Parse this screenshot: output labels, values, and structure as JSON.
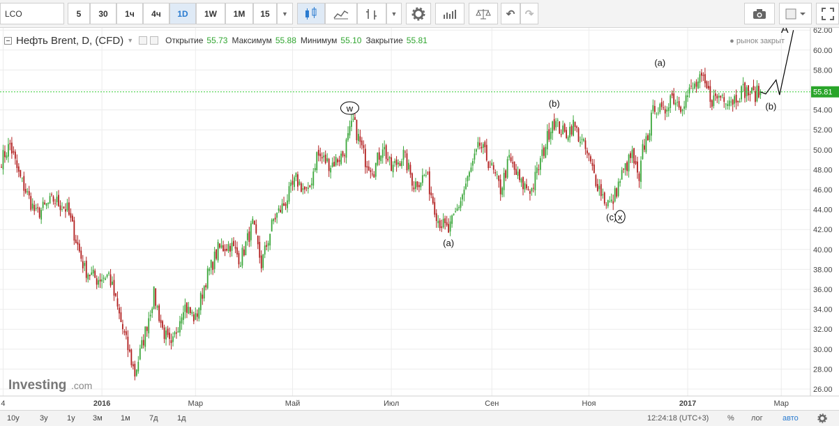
{
  "toolbar": {
    "symbol": "LCO",
    "intervals": [
      "5",
      "30",
      "1ч",
      "4ч",
      "1D",
      "1W",
      "1M",
      "15"
    ],
    "active_interval": "1D"
  },
  "legend": {
    "title": "Нефть Brent, D, (CFD)",
    "open_label": "Открытие",
    "open": "55.73",
    "high_label": "Максимум",
    "high": "55.88",
    "low_label": "Минимум",
    "low": "55.10",
    "close_label": "Закрытие",
    "close": "55.81",
    "market_status": "рынок закрыт"
  },
  "watermark": {
    "brand": "Investing",
    "suffix": ".com"
  },
  "bottom": {
    "ranges": [
      "10y",
      "3y",
      "1y",
      "3м",
      "1м",
      "7д",
      "1д"
    ],
    "time": "12:24:18 (UTC+3)",
    "percent": "%",
    "log": "лог",
    "auto": "авто"
  },
  "colors": {
    "up": "#3aa63a",
    "down": "#b11e1e",
    "price_line": "#33cc33",
    "grid": "#ececec"
  },
  "chart_data": {
    "type": "candlestick",
    "y_axis": {
      "min": 26,
      "max": 62,
      "step": 2,
      "side": "right"
    },
    "y_ticks": [
      "26.00",
      "28.00",
      "30.00",
      "32.00",
      "34.00",
      "36.00",
      "38.00",
      "40.00",
      "42.00",
      "44.00",
      "46.00",
      "48.00",
      "50.00",
      "52.00",
      "54.00",
      "56.00",
      "58.00",
      "60.00",
      "62.00"
    ],
    "x_ticks": [
      "4",
      "2016",
      "Мар",
      "Май",
      "Июл",
      "Сен",
      "Ноя",
      "2017",
      "Мар"
    ],
    "current_price": {
      "label": "55.81",
      "value": 55.81
    },
    "anchors": [
      [
        0,
        49.0
      ],
      [
        5,
        50.5
      ],
      [
        10,
        47.5
      ],
      [
        20,
        43.5
      ],
      [
        30,
        45.0
      ],
      [
        38,
        44.0
      ],
      [
        48,
        38.0
      ],
      [
        55,
        37.0
      ],
      [
        62,
        37.5
      ],
      [
        70,
        32.0
      ],
      [
        77,
        27.5
      ],
      [
        82,
        31.0
      ],
      [
        88,
        35.5
      ],
      [
        93,
        32.0
      ],
      [
        98,
        30.0
      ],
      [
        105,
        34.5
      ],
      [
        112,
        33.0
      ],
      [
        118,
        37.0
      ],
      [
        125,
        40.0
      ],
      [
        132,
        40.5
      ],
      [
        138,
        39.0
      ],
      [
        145,
        42.5
      ],
      [
        150,
        38.5
      ],
      [
        157,
        43.0
      ],
      [
        163,
        44.5
      ],
      [
        170,
        47.0
      ],
      [
        177,
        45.5
      ],
      [
        182,
        49.5
      ],
      [
        190,
        48.5
      ],
      [
        197,
        49.5
      ],
      [
        203,
        52.8
      ],
      [
        210,
        49.0
      ],
      [
        215,
        48.0
      ],
      [
        220,
        50.5
      ],
      [
        225,
        48.0
      ],
      [
        232,
        49.5
      ],
      [
        238,
        46.5
      ],
      [
        245,
        47.5
      ],
      [
        252,
        43.0
      ],
      [
        258,
        41.8
      ],
      [
        263,
        44.0
      ],
      [
        270,
        47.5
      ],
      [
        276,
        50.5
      ],
      [
        282,
        48.5
      ],
      [
        288,
        46.0
      ],
      [
        293,
        49.0
      ],
      [
        300,
        46.5
      ],
      [
        306,
        46.0
      ],
      [
        313,
        50.0
      ],
      [
        318,
        53.0
      ],
      [
        325,
        51.5
      ],
      [
        330,
        52.5
      ],
      [
        337,
        50.0
      ],
      [
        343,
        47.0
      ],
      [
        348,
        45.0
      ],
      [
        352,
        44.5
      ],
      [
        358,
        47.5
      ],
      [
        364,
        49.5
      ],
      [
        368,
        46.5
      ],
      [
        370,
        50.0
      ],
      [
        373,
        51.5
      ],
      [
        377,
        54.5
      ],
      [
        382,
        53.5
      ],
      [
        386,
        55.5
      ],
      [
        392,
        54.5
      ],
      [
        398,
        56.0
      ],
      [
        404,
        57.0
      ],
      [
        410,
        55.0
      ],
      [
        416,
        55.5
      ],
      [
        422,
        55.0
      ],
      [
        428,
        56.0
      ],
      [
        434,
        55.5
      ],
      [
        438,
        55.8
      ]
    ],
    "wave_labels": [
      {
        "text": "W",
        "i": 201,
        "y": 53.9,
        "circled": true
      },
      {
        "text": "(a)",
        "i": 258,
        "y": 40.4
      },
      {
        "text": "(b)",
        "i": 319,
        "y": 54.4
      },
      {
        "text": "(c)",
        "i": 352,
        "y": 43.0
      },
      {
        "text": "X",
        "i": 357,
        "y": 43.0,
        "circled": true
      },
      {
        "text": "(a)",
        "i": 380,
        "y": 58.5
      },
      {
        "text": "(b)",
        "i": 444,
        "y": 54.1
      },
      {
        "text": "A",
        "i": 452,
        "y": 61.8
      }
    ],
    "projection": [
      [
        438,
        55.8
      ],
      [
        441,
        55.6
      ],
      [
        447,
        57.0
      ],
      [
        449,
        55.5
      ],
      [
        457,
        62.0
      ]
    ]
  }
}
